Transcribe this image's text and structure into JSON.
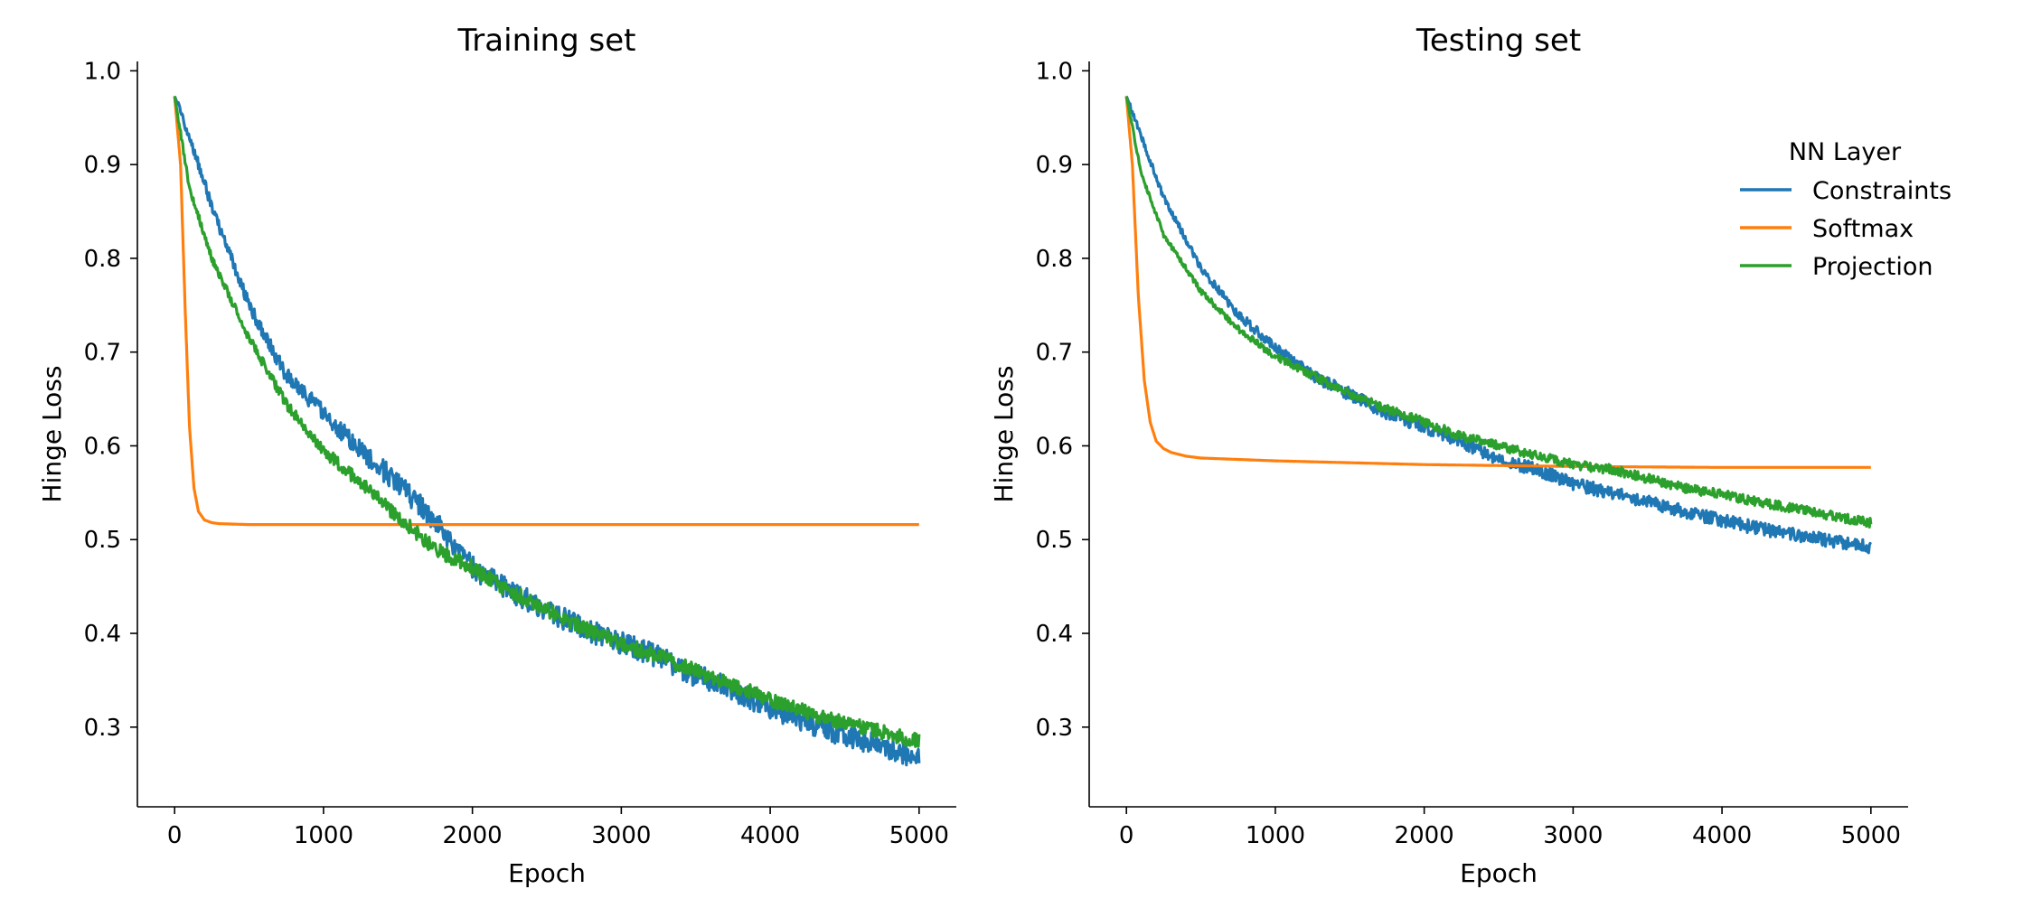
{
  "chart_data": [
    {
      "type": "line",
      "title": "Training set",
      "xlabel": "Epoch",
      "ylabel": "Hinge Loss",
      "xlim": [
        -250,
        5250
      ],
      "ylim": [
        0.215,
        1.01
      ],
      "xticks": [
        0,
        1000,
        2000,
        3000,
        4000,
        5000
      ],
      "yticks": [
        0.3,
        0.4,
        0.5,
        0.6,
        0.7,
        0.8,
        0.9,
        1.0
      ],
      "xtick_labels": [
        "0",
        "1000",
        "2000",
        "3000",
        "4000",
        "5000"
      ],
      "ytick_labels": [
        "0.3",
        "0.4",
        "0.5",
        "0.6",
        "0.7",
        "0.8",
        "0.9",
        "1.0"
      ],
      "grid": false,
      "legend": null,
      "series": [
        {
          "name": "Constraints",
          "color": "#1f77b4",
          "x": [
            0,
            100,
            250,
            500,
            750,
            1000,
            1250,
            1500,
            1750,
            2000,
            2250,
            2500,
            2750,
            3000,
            3250,
            3500,
            3750,
            4000,
            4250,
            4500,
            4750,
            5000
          ],
          "y": [
            0.973,
            0.93,
            0.855,
            0.75,
            0.675,
            0.635,
            0.595,
            0.56,
            0.52,
            0.47,
            0.445,
            0.425,
            0.405,
            0.39,
            0.375,
            0.355,
            0.34,
            0.32,
            0.305,
            0.29,
            0.28,
            0.265
          ],
          "noise": 0.012
        },
        {
          "name": "Softmax",
          "color": "#ff7f0e",
          "x": [
            0,
            40,
            70,
            100,
            130,
            160,
            200,
            250,
            300,
            500,
            1000,
            2000,
            3000,
            4000,
            5000
          ],
          "y": [
            0.973,
            0.9,
            0.75,
            0.62,
            0.555,
            0.53,
            0.521,
            0.518,
            0.517,
            0.516,
            0.516,
            0.516,
            0.516,
            0.516,
            0.516
          ],
          "noise": 0
        },
        {
          "name": "Projection",
          "color": "#2ca02c",
          "x": [
            0,
            100,
            250,
            500,
            750,
            1000,
            1250,
            1500,
            1750,
            2000,
            2250,
            2500,
            2750,
            3000,
            3250,
            3500,
            3750,
            4000,
            4250,
            4500,
            4750,
            5000
          ],
          "y": [
            0.973,
            0.875,
            0.8,
            0.715,
            0.645,
            0.595,
            0.56,
            0.525,
            0.49,
            0.47,
            0.445,
            0.425,
            0.405,
            0.39,
            0.375,
            0.36,
            0.345,
            0.33,
            0.315,
            0.305,
            0.295,
            0.285
          ],
          "noise": 0.008
        }
      ]
    },
    {
      "type": "line",
      "title": "Testing set",
      "xlabel": "Epoch",
      "ylabel": "Hinge Loss",
      "xlim": [
        -250,
        5250
      ],
      "ylim": [
        0.215,
        1.01
      ],
      "xticks": [
        0,
        1000,
        2000,
        3000,
        4000,
        5000
      ],
      "yticks": [
        0.3,
        0.4,
        0.5,
        0.6,
        0.7,
        0.8,
        0.9,
        1.0
      ],
      "xtick_labels": [
        "0",
        "1000",
        "2000",
        "3000",
        "4000",
        "5000"
      ],
      "ytick_labels": [
        "0.3",
        "0.4",
        "0.5",
        "0.6",
        "0.7",
        "0.8",
        "0.9",
        "1.0"
      ],
      "grid": false,
      "legend": {
        "title": "NN Layer",
        "position": "upper-right"
      },
      "series": [
        {
          "name": "Constraints",
          "color": "#1f77b4",
          "x": [
            0,
            100,
            250,
            500,
            750,
            1000,
            1250,
            1500,
            1750,
            2000,
            2250,
            2500,
            2750,
            3000,
            3250,
            3500,
            3750,
            4000,
            4250,
            4500,
            4750,
            5000
          ],
          "y": [
            0.973,
            0.93,
            0.865,
            0.79,
            0.74,
            0.705,
            0.675,
            0.655,
            0.635,
            0.62,
            0.605,
            0.585,
            0.575,
            0.56,
            0.55,
            0.54,
            0.53,
            0.52,
            0.512,
            0.505,
            0.498,
            0.492
          ],
          "noise": 0.007
        },
        {
          "name": "Softmax",
          "color": "#ff7f0e",
          "x": [
            0,
            40,
            80,
            120,
            160,
            200,
            250,
            300,
            400,
            500,
            1000,
            2000,
            3000,
            4000,
            5000
          ],
          "y": [
            0.973,
            0.9,
            0.76,
            0.67,
            0.625,
            0.605,
            0.597,
            0.593,
            0.589,
            0.587,
            0.584,
            0.58,
            0.578,
            0.577,
            0.577
          ],
          "noise": 0
        },
        {
          "name": "Projection",
          "color": "#2ca02c",
          "x": [
            0,
            100,
            250,
            500,
            750,
            1000,
            1250,
            1500,
            1750,
            2000,
            2250,
            2500,
            2750,
            3000,
            3250,
            3500,
            3750,
            4000,
            4250,
            4500,
            4750,
            5000
          ],
          "y": [
            0.973,
            0.89,
            0.825,
            0.765,
            0.725,
            0.695,
            0.675,
            0.655,
            0.64,
            0.625,
            0.61,
            0.6,
            0.59,
            0.58,
            0.575,
            0.565,
            0.555,
            0.548,
            0.54,
            0.533,
            0.525,
            0.518
          ],
          "noise": 0.005
        }
      ]
    }
  ]
}
